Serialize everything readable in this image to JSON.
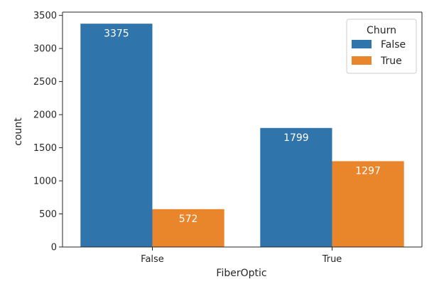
{
  "chart_data": {
    "type": "bar",
    "categories": [
      "False",
      "True"
    ],
    "series": [
      {
        "name": "False",
        "values": [
          3375,
          1799
        ],
        "color": "#2f74ab"
      },
      {
        "name": "True",
        "values": [
          572,
          1297
        ],
        "color": "#e9852b"
      }
    ],
    "title": "",
    "xlabel": "FiberOptic",
    "ylabel": "count",
    "ylim": [
      0,
      3550
    ],
    "yticks": [
      0,
      500,
      1000,
      1500,
      2000,
      2500,
      3000,
      3500
    ],
    "ytick_labels": [
      "0",
      "500",
      "1000",
      "1500",
      "2000",
      "2500",
      "3000",
      "3500"
    ],
    "grid": false,
    "legend": {
      "title": "Churn",
      "placement": "top-right"
    },
    "data_labels": [
      [
        "3375",
        "1799"
      ],
      [
        "572",
        "1297"
      ]
    ]
  }
}
